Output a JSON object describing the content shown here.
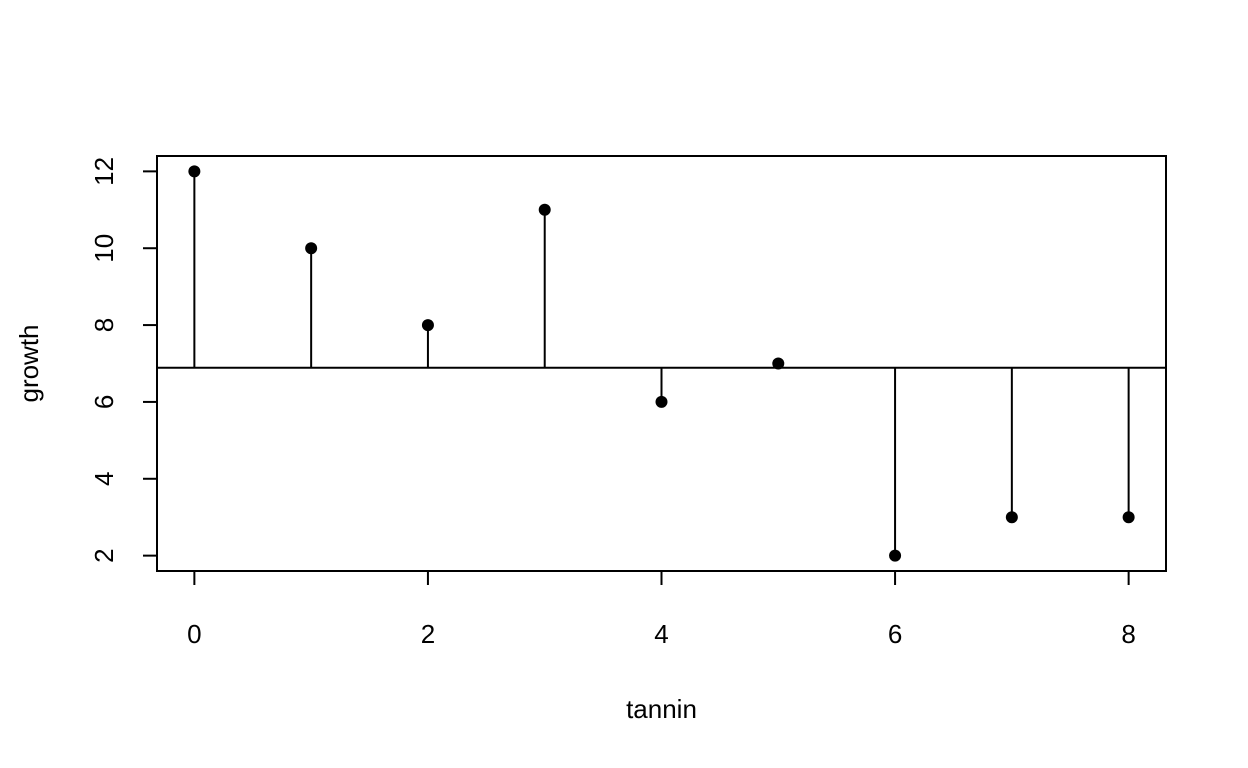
{
  "chart_data": {
    "type": "scatter",
    "title": "",
    "xlabel": "tannin",
    "ylabel": "growth",
    "xlim": [
      -0.32,
      8.32
    ],
    "ylim": [
      1.6,
      12.4
    ],
    "x_ticks": [
      0,
      2,
      4,
      6,
      8
    ],
    "y_ticks": [
      2,
      4,
      6,
      8,
      10,
      12
    ],
    "mean_line": 6.89,
    "x": [
      0,
      1,
      2,
      3,
      4,
      5,
      6,
      7,
      8
    ],
    "y": [
      12,
      10,
      8,
      11,
      6,
      7,
      2,
      3,
      3
    ],
    "grid": false,
    "legend": "none",
    "point_color": "#000000",
    "line_color": "#000000"
  }
}
